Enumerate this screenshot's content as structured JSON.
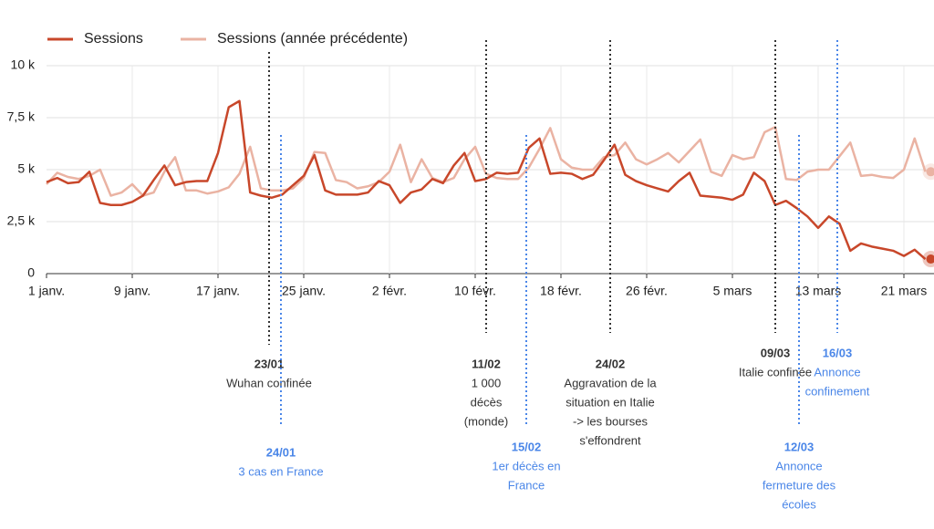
{
  "chart_data": {
    "type": "line",
    "categories": [
      "1 janv.",
      null,
      null,
      null,
      null,
      null,
      null,
      null,
      "9 janv.",
      null,
      null,
      null,
      null,
      null,
      null,
      null,
      "17 janv.",
      null,
      null,
      null,
      null,
      null,
      null,
      null,
      "25 janv.",
      null,
      null,
      null,
      null,
      null,
      null,
      null,
      "2 févr.",
      null,
      null,
      null,
      null,
      null,
      null,
      null,
      "10 févr.",
      null,
      null,
      null,
      null,
      null,
      null,
      null,
      "18 févr.",
      null,
      null,
      null,
      null,
      null,
      null,
      null,
      "26 févr.",
      null,
      null,
      null,
      null,
      null,
      null,
      null,
      "5 mars",
      null,
      null,
      null,
      null,
      null,
      null,
      null,
      "13 mars",
      null,
      null,
      null,
      null,
      null,
      null,
      null,
      "21 mars",
      null,
      null
    ],
    "series": [
      {
        "name": "Sessions",
        "color": "#c8472a",
        "values": [
          4400,
          4600,
          4350,
          4400,
          4900,
          3400,
          3300,
          3300,
          3450,
          3750,
          4500,
          5200,
          4250,
          4400,
          4450,
          4450,
          5800,
          8000,
          8300,
          3900,
          3750,
          3650,
          3800,
          4250,
          4700,
          5700,
          4000,
          3800,
          3800,
          3800,
          3900,
          4450,
          4250,
          3400,
          3900,
          4050,
          4550,
          4350,
          5200,
          5800,
          4450,
          4550,
          4850,
          4800,
          4850,
          6050,
          6500,
          4800,
          4850,
          4800,
          4550,
          4750,
          5450,
          6200,
          4750,
          4450,
          4250,
          4100,
          3950,
          4450,
          4850,
          3750,
          3700,
          3650,
          3550,
          3800,
          4850,
          4450,
          3300,
          3500,
          3150,
          2750,
          2200,
          2750,
          2400,
          1100,
          1450,
          1300,
          1200,
          1100,
          850,
          1150,
          700
        ]
      },
      {
        "name": "Sessions (année précédente)",
        "color": "#eab3a3",
        "values": [
          4300,
          4850,
          4650,
          4550,
          4700,
          5000,
          3750,
          3900,
          4300,
          3750,
          3900,
          4900,
          5600,
          4000,
          4000,
          3850,
          3950,
          4150,
          4800,
          6100,
          4100,
          4000,
          4000,
          4100,
          4600,
          5850,
          5800,
          4500,
          4400,
          4100,
          4200,
          4400,
          4900,
          6200,
          4400,
          5500,
          4600,
          4400,
          4600,
          5500,
          6100,
          4800,
          4600,
          4550,
          4550,
          5100,
          6000,
          7000,
          5500,
          5100,
          5000,
          5000,
          5600,
          5700,
          6300,
          5500,
          5250,
          5500,
          5800,
          5350,
          5900,
          6450,
          4900,
          4700,
          5700,
          5500,
          5600,
          6800,
          7050,
          4550,
          4500,
          4900,
          5000,
          5000,
          5650,
          6300,
          4700,
          4750,
          4650,
          4600,
          5000,
          6500,
          4900
        ]
      }
    ],
    "ylim": [
      0,
      10000
    ],
    "yticks": [
      {
        "value": 0,
        "label": "0"
      },
      {
        "value": 2500,
        "label": "2,5 k"
      },
      {
        "value": 5000,
        "label": "5 k"
      },
      {
        "value": 7500,
        "label": "7,5 k"
      },
      {
        "value": 10000,
        "label": "10 k"
      }
    ],
    "grid": true,
    "legend": "top",
    "annotations": [
      {
        "title": "23/01",
        "lines": [
          "Wuhan confinée"
        ],
        "color": "#333333"
      },
      {
        "title": "24/01",
        "lines": [
          "3 cas en France"
        ],
        "color": "#4a86e8"
      },
      {
        "title": "11/02",
        "lines": [
          "1 000",
          "décès",
          "(monde)"
        ],
        "color": "#333333"
      },
      {
        "title": "15/02",
        "lines": [
          "1er décès en",
          "France"
        ],
        "color": "#4a86e8"
      },
      {
        "title": "24/02",
        "lines": [
          "Aggravation de la",
          "situation en Italie",
          "-> les bourses",
          "s'effondrent"
        ],
        "color": "#333333"
      },
      {
        "title": "09/03",
        "lines": [
          "Italie confinée"
        ],
        "color": "#333333"
      },
      {
        "title": "16/03",
        "lines": [
          "Annonce",
          "confinement"
        ],
        "color": "#4a86e8"
      },
      {
        "title": "12/03",
        "lines": [
          "Annonce",
          "fermeture des",
          "écoles"
        ],
        "color": "#4a86e8"
      }
    ]
  }
}
